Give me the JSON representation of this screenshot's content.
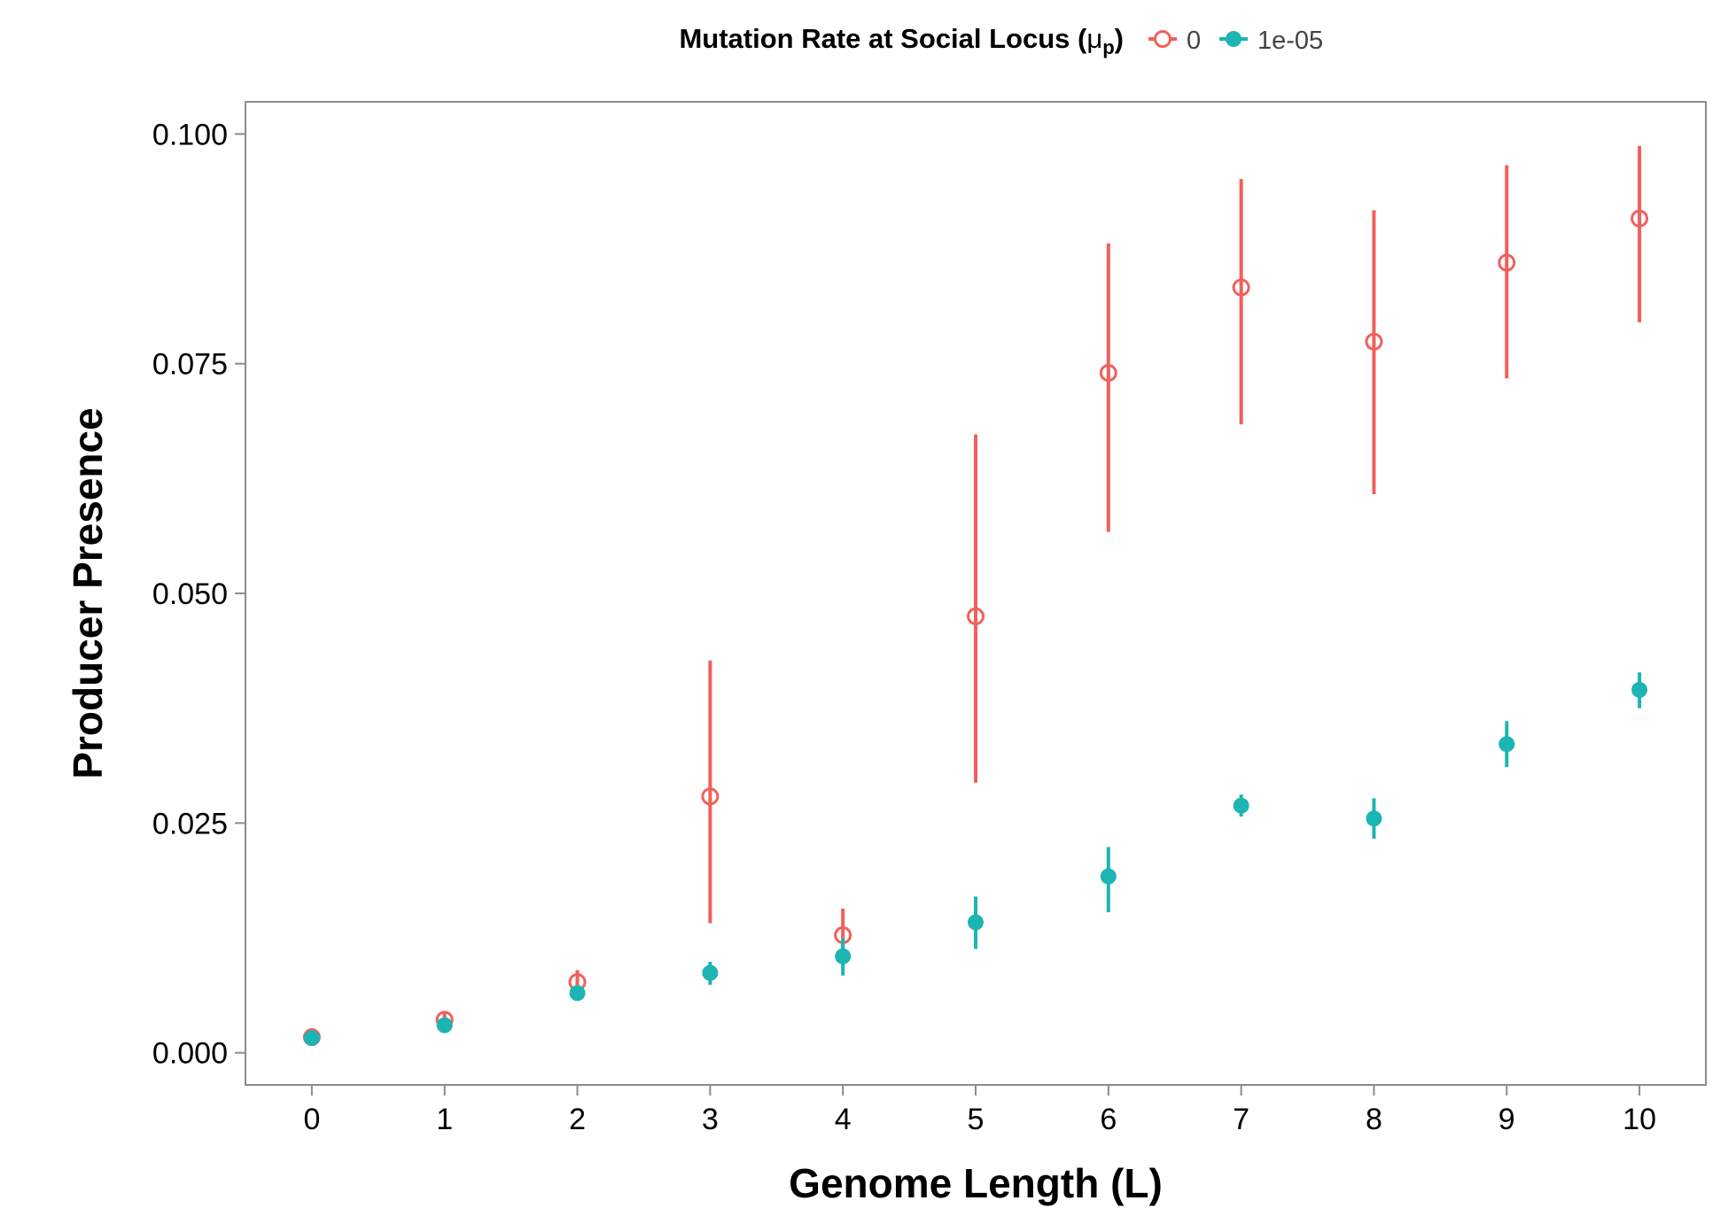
{
  "chart_data": {
    "type": "scatter",
    "xlabel": "Genome Length (L)",
    "ylabel": "Producer Presence",
    "xlim": [
      -0.5,
      10.5
    ],
    "ylim": [
      -0.0035,
      0.1035
    ],
    "x_ticks": [
      0,
      1,
      2,
      3,
      4,
      5,
      6,
      7,
      8,
      9,
      10
    ],
    "y_ticks": [
      0.0,
      0.025,
      0.05,
      0.075,
      0.1
    ],
    "y_tick_labels": [
      "0.000",
      "0.025",
      "0.050",
      "0.075",
      "0.100"
    ],
    "x_tick_labels": [
      "0",
      "1",
      "2",
      "3",
      "4",
      "5",
      "6",
      "7",
      "8",
      "9",
      "10"
    ],
    "grid": false,
    "legend": {
      "position": "top",
      "title_main": "Mutation Rate at Social Locus (",
      "title_symbol": "μ",
      "title_subscript": "p",
      "title_close": ")"
    },
    "series": [
      {
        "name": "0",
        "color": "#F1605B",
        "marker": "open-circle",
        "x": [
          0,
          1,
          2,
          3,
          4,
          5,
          6,
          7,
          8,
          9,
          10
        ],
        "y": [
          0.0017,
          0.0036,
          0.0077,
          0.0279,
          0.0128,
          0.0475,
          0.074,
          0.0833,
          0.0774,
          0.086,
          0.0908
        ],
        "y_low": [
          0.0015,
          0.0031,
          0.0068,
          0.0141,
          0.0105,
          0.0294,
          0.0567,
          0.0684,
          0.0608,
          0.0734,
          0.0795
        ],
        "y_high": [
          0.0019,
          0.0043,
          0.009,
          0.0427,
          0.0157,
          0.0673,
          0.0881,
          0.0951,
          0.0917,
          0.0966,
          0.0987
        ]
      },
      {
        "name": "1e-05",
        "color": "#1CB5B4",
        "marker": "filled-circle",
        "x": [
          0,
          1,
          2,
          3,
          4,
          5,
          6,
          7,
          8,
          9,
          10
        ],
        "y": [
          0.0016,
          0.003,
          0.0065,
          0.0087,
          0.0105,
          0.0142,
          0.0192,
          0.0269,
          0.0255,
          0.0336,
          0.0395
        ],
        "y_low": [
          0.0014,
          0.0026,
          0.0058,
          0.0074,
          0.0084,
          0.0113,
          0.0153,
          0.0257,
          0.0233,
          0.0311,
          0.0375
        ],
        "y_high": [
          0.0018,
          0.0034,
          0.0072,
          0.0099,
          0.0125,
          0.017,
          0.0224,
          0.0281,
          0.0277,
          0.0361,
          0.0414
        ]
      }
    ]
  }
}
